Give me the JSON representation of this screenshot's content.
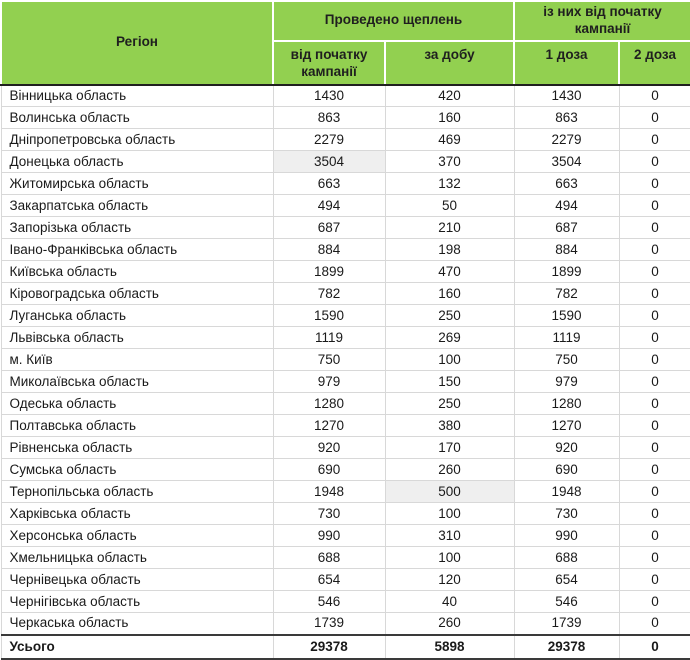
{
  "chart_data": {
    "type": "table",
    "region_column": "Регіон",
    "header_groups": [
      {
        "label": "Проведено щеплень",
        "columns": [
          "від початку кампанії",
          "за добу"
        ]
      },
      {
        "label": "із них від початку кампанії",
        "columns": [
          "1 доза",
          "2 доза"
        ]
      }
    ],
    "rows": [
      {
        "region": "Вінницька область",
        "values": [
          1430,
          420,
          1430,
          0
        ]
      },
      {
        "region": "Волинська область",
        "values": [
          863,
          160,
          863,
          0
        ]
      },
      {
        "region": "Дніпропетровська область",
        "values": [
          2279,
          469,
          2279,
          0
        ]
      },
      {
        "region": "Донецька область",
        "values": [
          3504,
          370,
          3504,
          0
        ]
      },
      {
        "region": "Житомирська область",
        "values": [
          663,
          132,
          663,
          0
        ]
      },
      {
        "region": "Закарпатська область",
        "values": [
          494,
          50,
          494,
          0
        ]
      },
      {
        "region": "Запорізька область",
        "values": [
          687,
          210,
          687,
          0
        ]
      },
      {
        "region": "Івано-Франківська область",
        "values": [
          884,
          198,
          884,
          0
        ]
      },
      {
        "region": "Київська область",
        "values": [
          1899,
          470,
          1899,
          0
        ]
      },
      {
        "region": "Кіровоградська область",
        "values": [
          782,
          160,
          782,
          0
        ]
      },
      {
        "region": "Луганська область",
        "values": [
          1590,
          250,
          1590,
          0
        ]
      },
      {
        "region": "Львівська область",
        "values": [
          1119,
          269,
          1119,
          0
        ]
      },
      {
        "region": "м. Київ",
        "values": [
          750,
          100,
          750,
          0
        ]
      },
      {
        "region": "Миколаївська область",
        "values": [
          979,
          150,
          979,
          0
        ]
      },
      {
        "region": "Одеська область",
        "values": [
          1280,
          250,
          1280,
          0
        ]
      },
      {
        "region": "Полтавська область",
        "values": [
          1270,
          380,
          1270,
          0
        ]
      },
      {
        "region": "Рівненська область",
        "values": [
          920,
          170,
          920,
          0
        ]
      },
      {
        "region": "Сумська область",
        "values": [
          690,
          260,
          690,
          0
        ]
      },
      {
        "region": "Тернопільська область",
        "values": [
          1948,
          500,
          1948,
          0
        ]
      },
      {
        "region": "Харківська область",
        "values": [
          730,
          100,
          730,
          0
        ]
      },
      {
        "region": "Херсонська область",
        "values": [
          990,
          310,
          990,
          0
        ]
      },
      {
        "region": "Хмельницька область",
        "values": [
          688,
          100,
          688,
          0
        ]
      },
      {
        "region": "Чернівецька область",
        "values": [
          654,
          120,
          654,
          0
        ]
      },
      {
        "region": "Чернігівська область",
        "values": [
          546,
          40,
          546,
          0
        ]
      },
      {
        "region": "Черкаська область",
        "values": [
          1739,
          260,
          1739,
          0
        ]
      }
    ],
    "highlighted_cells": [
      {
        "region": "Донецька область",
        "column": "від початку кампанії"
      },
      {
        "region": "Тернопільська область",
        "column": "за добу"
      }
    ],
    "totals": {
      "label": "Усього",
      "values": [
        29378,
        5898,
        29378,
        0
      ]
    }
  },
  "colors": {
    "header_green": "#92D050",
    "highlight_cell": "#EFEFEF",
    "grid_line": "#D8D8D8",
    "dark_border": "#1F1F1F"
  }
}
